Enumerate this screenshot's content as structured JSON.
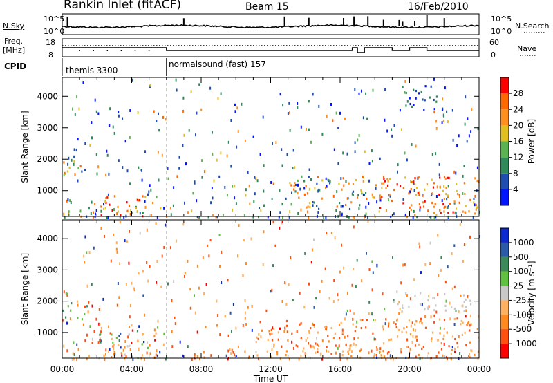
{
  "header": {
    "station": "Rankin Inlet (fitACF)",
    "beam": "Beam 15",
    "date": "16/Feb/2010"
  },
  "strip_nsky": {
    "left_label": "N.Sky",
    "ticks_left": [
      "10^5",
      "10^0"
    ],
    "ticks_right": [
      "10^5",
      "10^0"
    ],
    "right_label": "N.Search"
  },
  "strip_freq": {
    "left_label_1": "Freq.",
    "left_label_2": "[MHz]",
    "ticks_left": [
      "18",
      "8"
    ],
    "ticks_right": [
      "60",
      "0"
    ],
    "right_label": "Nave"
  },
  "cpid": {
    "label": "CPID",
    "segments": [
      {
        "name": "themis 3300",
        "start_hour": 0
      },
      {
        "name": "normalsound (fast) 157",
        "start_hour": 6
      }
    ]
  },
  "chart_data": [
    {
      "type": "heatmap",
      "panel": "power",
      "xlabel": "",
      "ylabel": "Slant Range [km]",
      "x_unit": "hours UT",
      "xlim": [
        0,
        24
      ],
      "ylim": [
        180,
        4600
      ],
      "yticks": [
        1000,
        2000,
        3000,
        4000
      ],
      "colorbar": {
        "title": "Power [dB]",
        "ticks": [
          "4",
          "8",
          "12",
          "16",
          "20",
          "24",
          "28"
        ],
        "colors": [
          "#0014ff",
          "#1e4fb0",
          "#2f8a5a",
          "#5ab250",
          "#e0c020",
          "#ff9020",
          "#ff6a00",
          "#ff0000"
        ]
      },
      "echo_regions": [
        {
          "t0": 0.0,
          "t1": 0.5,
          "r0": 1500,
          "r1": 2300,
          "level": "high"
        },
        {
          "t0": 0.8,
          "t1": 1.4,
          "r0": 1500,
          "r1": 1900,
          "level": "mid"
        },
        {
          "t0": 2.2,
          "t1": 5.2,
          "r0": 200,
          "r1": 900,
          "level": "high"
        },
        {
          "t0": 13.0,
          "t1": 17.5,
          "r0": 400,
          "r1": 1500,
          "level": "mid"
        },
        {
          "t0": 17.8,
          "t1": 24.0,
          "r0": 300,
          "r1": 1500,
          "level": "high"
        },
        {
          "t0": 19.5,
          "t1": 22.0,
          "r0": 3600,
          "r1": 4400,
          "level": "low"
        }
      ]
    },
    {
      "type": "heatmap",
      "panel": "velocity",
      "xlabel": "Time UT",
      "ylabel": "Slant Range [km]",
      "x_unit": "hours UT",
      "xlim": [
        0,
        24
      ],
      "ylim": [
        180,
        4600
      ],
      "xticks": [
        "00:00",
        "04:00",
        "08:00",
        "12:00",
        "16:00",
        "20:00",
        "00:00"
      ],
      "yticks": [
        1000,
        2000,
        3000,
        4000
      ],
      "colorbar": {
        "title": "Velocity [m s⁻¹]",
        "ticks": [
          "1000",
          "500",
          "100",
          "25",
          "-25",
          "-100",
          "-500",
          "-1000"
        ],
        "colors": [
          "#0a2ad0",
          "#2a5aa8",
          "#3a8a5a",
          "#60c040",
          "#c8c8c8",
          "#ffb060",
          "#ff8a20",
          "#ff5010",
          "#ff0000"
        ]
      },
      "echo_regions": [
        {
          "t0": 0.0,
          "t1": 0.5,
          "r0": 1500,
          "r1": 2300,
          "level": "positive"
        },
        {
          "t0": 0.8,
          "t1": 1.4,
          "r0": 1400,
          "r1": 1900,
          "level": "positive"
        },
        {
          "t0": 2.0,
          "t1": 5.5,
          "r0": 200,
          "r1": 1300,
          "level": "mixed"
        },
        {
          "t0": 11.0,
          "t1": 16.5,
          "r0": 300,
          "r1": 1400,
          "level": "negative"
        },
        {
          "t0": 16.5,
          "t1": 24.0,
          "r0": 200,
          "r1": 1500,
          "level": "negative"
        },
        {
          "t0": 19.0,
          "t1": 23.5,
          "r0": 1700,
          "r1": 2300,
          "level": "near-zero"
        }
      ]
    }
  ]
}
